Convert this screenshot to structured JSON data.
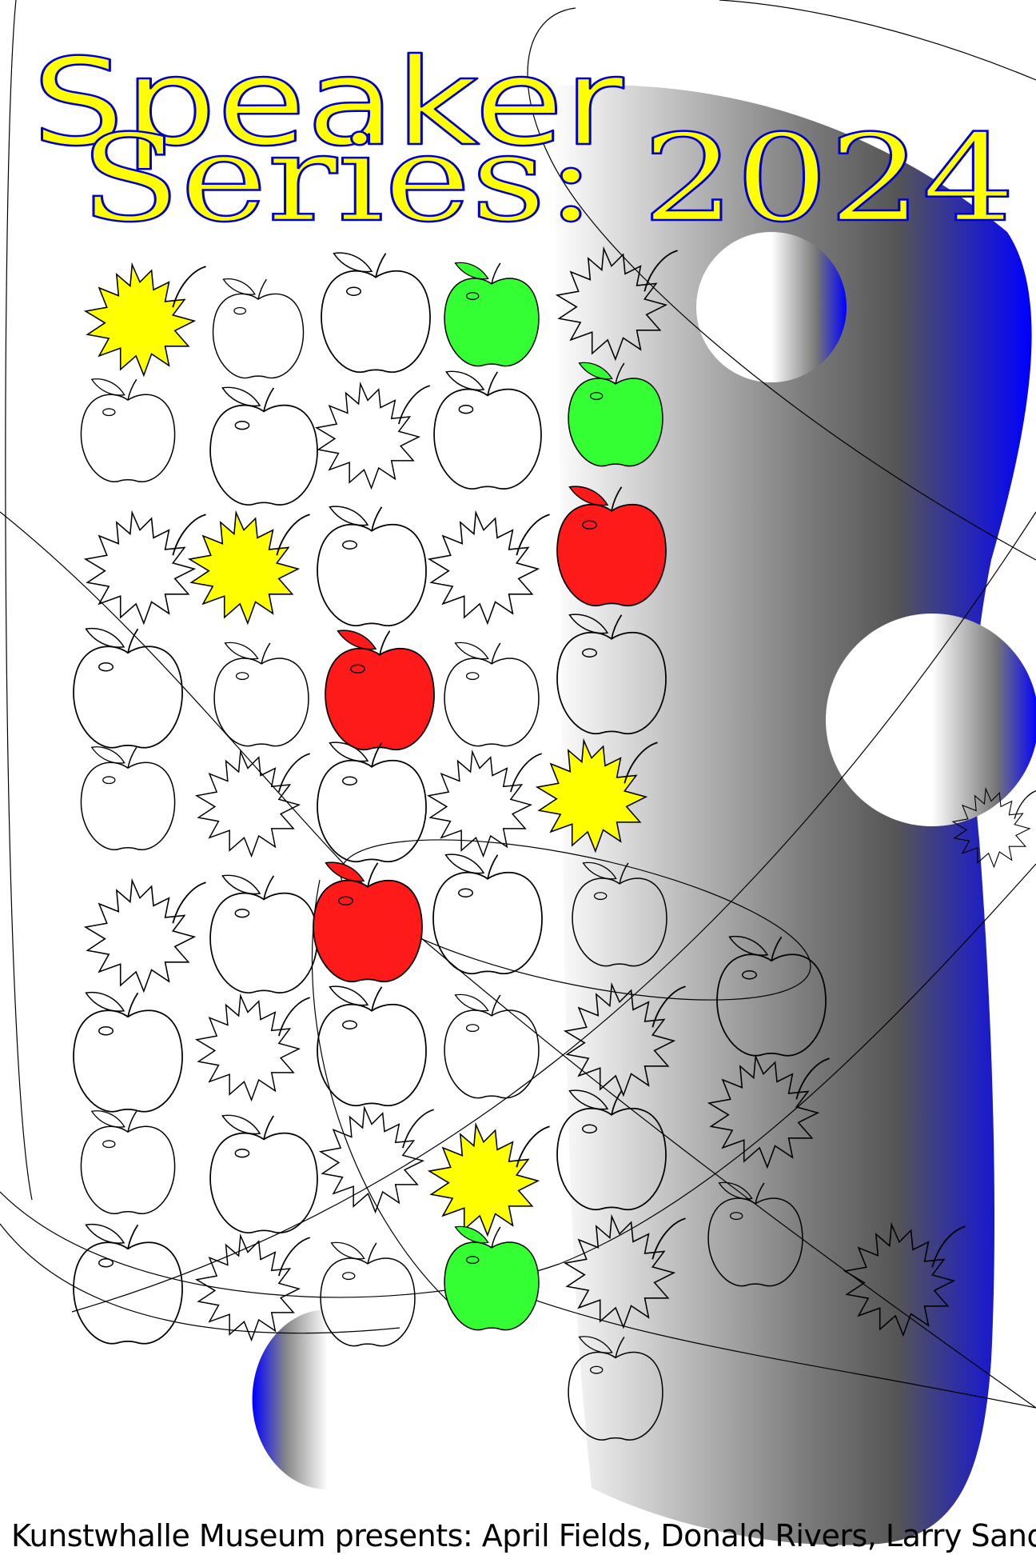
{
  "poster": {
    "title_line1": "Speaker",
    "title_line2": "Series: 2024",
    "footer": "Kunstwhalle Museum presents: April Fields, Donald Rivers, Larry Sand"
  },
  "colors": {
    "background": "#ffffff",
    "title_fill": "#ffff00",
    "title_stroke": "#0000cc",
    "blue": "#0000ff",
    "gradient_dark": "#555555",
    "apple_red": "#ff1a1a",
    "apple_green": "#33ff33",
    "leaf_yellow": "#ffff00",
    "outline": "#000000"
  },
  "icons": {
    "apple": "apple-icon",
    "leaf": "maple-leaf-icon"
  }
}
